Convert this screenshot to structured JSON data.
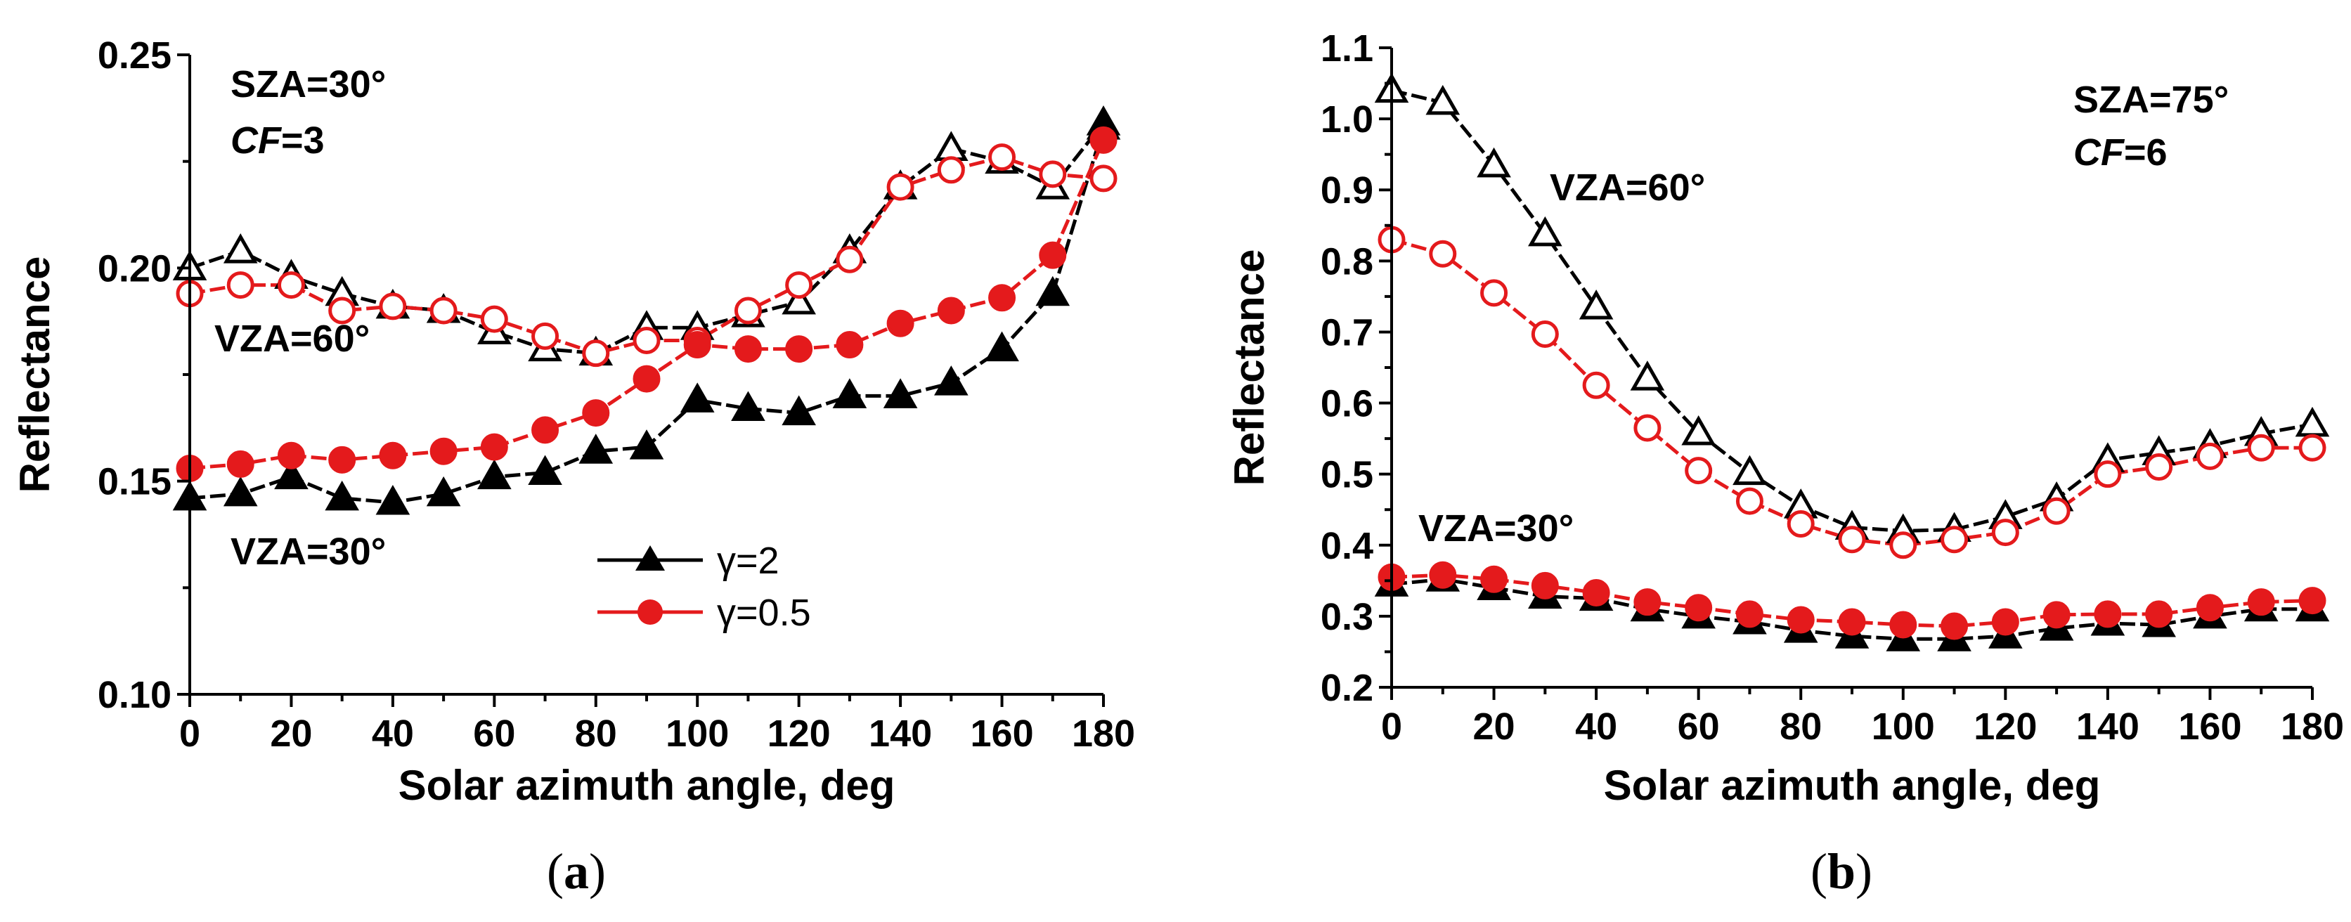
{
  "colors": {
    "gamma2": "#000000",
    "gamma05": "#e41a1c",
    "axis": "#000000"
  },
  "chart_data": [
    {
      "type": "line",
      "panel_label": "(a)",
      "panel_open": "(",
      "panel_letter": "a",
      "panel_close": ")",
      "xlabel": "Solar azimuth angle, deg",
      "ylabel": "Reflectance",
      "xlim": [
        0,
        180
      ],
      "ylim": [
        0.1,
        0.25
      ],
      "xticks": [
        "0",
        "20",
        "40",
        "60",
        "80",
        "100",
        "120",
        "140",
        "160",
        "180"
      ],
      "yticks": [
        "0.10",
        "0.15",
        "0.20",
        "0.25"
      ],
      "annotations": {
        "sza": "SZA=30°",
        "cf_prefix": "CF",
        "cf_suffix": "=3",
        "vza_high": "VZA=60°",
        "vza_low": "VZA=30°"
      },
      "legend": {
        "gamma2": "γ=2",
        "gamma05": "γ=0.5",
        "placement": "bottom-center"
      },
      "x": [
        0,
        10,
        20,
        30,
        40,
        50,
        60,
        70,
        80,
        90,
        100,
        110,
        120,
        130,
        140,
        150,
        160,
        170,
        180
      ],
      "series": [
        {
          "name": "VZA=60°, γ=2",
          "key": "gamma2",
          "filled": false,
          "marker": "triangle",
          "values": [
            0.2,
            0.204,
            0.198,
            0.194,
            0.191,
            0.19,
            0.185,
            0.181,
            0.18,
            0.186,
            0.186,
            0.189,
            0.192,
            0.204,
            0.219,
            0.228,
            0.225,
            0.219,
            0.234
          ]
        },
        {
          "name": "VZA=60°, γ=0.5",
          "key": "gamma05",
          "filled": false,
          "marker": "circle",
          "values": [
            0.194,
            0.196,
            0.196,
            0.19,
            0.191,
            0.19,
            0.188,
            0.184,
            0.18,
            0.183,
            0.183,
            0.19,
            0.196,
            0.202,
            0.219,
            0.223,
            0.226,
            0.222,
            0.221
          ]
        },
        {
          "name": "VZA=30°, γ=2",
          "key": "gamma2",
          "filled": true,
          "marker": "triangle",
          "values": [
            0.146,
            0.147,
            0.151,
            0.146,
            0.145,
            0.147,
            0.151,
            0.152,
            0.157,
            0.158,
            0.169,
            0.167,
            0.166,
            0.17,
            0.17,
            0.173,
            0.181,
            0.194,
            0.233
          ]
        },
        {
          "name": "VZA=30°, γ=0.5",
          "key": "gamma05",
          "filled": true,
          "marker": "circle",
          "values": [
            0.153,
            0.154,
            0.156,
            0.155,
            0.156,
            0.157,
            0.158,
            0.162,
            0.166,
            0.174,
            0.182,
            0.181,
            0.181,
            0.182,
            0.187,
            0.19,
            0.193,
            0.203,
            0.23
          ]
        }
      ]
    },
    {
      "type": "line",
      "panel_label": "(b)",
      "panel_open": "(",
      "panel_letter": "b",
      "panel_close": ")",
      "xlabel": "Solar azimuth angle, deg",
      "ylabel": "Reflectance",
      "xlim": [
        0,
        180
      ],
      "ylim": [
        0.2,
        1.1
      ],
      "xticks": [
        "0",
        "20",
        "40",
        "60",
        "80",
        "100",
        "120",
        "140",
        "160",
        "180"
      ],
      "yticks": [
        "0.2",
        "0.3",
        "0.4",
        "0.5",
        "0.6",
        "0.7",
        "0.8",
        "0.9",
        "1.0",
        "1.1"
      ],
      "annotations": {
        "sza": "SZA=75°",
        "cf_prefix": "CF",
        "cf_suffix": "=6",
        "vza_high": "VZA=60°",
        "vza_low": "VZA=30°"
      },
      "x": [
        0,
        10,
        20,
        30,
        40,
        50,
        60,
        70,
        80,
        90,
        100,
        110,
        120,
        130,
        140,
        150,
        160,
        170,
        180
      ],
      "series": [
        {
          "name": "VZA=60°, γ=2",
          "key": "gamma2",
          "filled": false,
          "marker": "triangle",
          "values": [
            1.04,
            1.023,
            0.935,
            0.838,
            0.735,
            0.635,
            0.558,
            0.502,
            0.455,
            0.425,
            0.42,
            0.422,
            0.44,
            0.465,
            0.52,
            0.53,
            0.54,
            0.557,
            0.57
          ]
        },
        {
          "name": "VZA=60°, γ=0.5",
          "key": "gamma05",
          "filled": false,
          "marker": "circle",
          "values": [
            0.83,
            0.81,
            0.755,
            0.697,
            0.625,
            0.565,
            0.505,
            0.462,
            0.43,
            0.408,
            0.4,
            0.408,
            0.418,
            0.448,
            0.5,
            0.51,
            0.525,
            0.537,
            0.537
          ]
        },
        {
          "name": "VZA=30°, γ=2",
          "key": "gamma2",
          "filled": true,
          "marker": "triangle",
          "values": [
            0.345,
            0.352,
            0.34,
            0.328,
            0.325,
            0.31,
            0.3,
            0.292,
            0.28,
            0.272,
            0.268,
            0.268,
            0.272,
            0.283,
            0.29,
            0.288,
            0.3,
            0.31,
            0.31
          ]
        },
        {
          "name": "VZA=30°, γ=0.5",
          "key": "gamma05",
          "filled": true,
          "marker": "circle",
          "values": [
            0.355,
            0.358,
            0.352,
            0.343,
            0.333,
            0.32,
            0.312,
            0.303,
            0.295,
            0.292,
            0.288,
            0.286,
            0.292,
            0.302,
            0.303,
            0.303,
            0.312,
            0.32,
            0.322
          ]
        }
      ]
    }
  ]
}
